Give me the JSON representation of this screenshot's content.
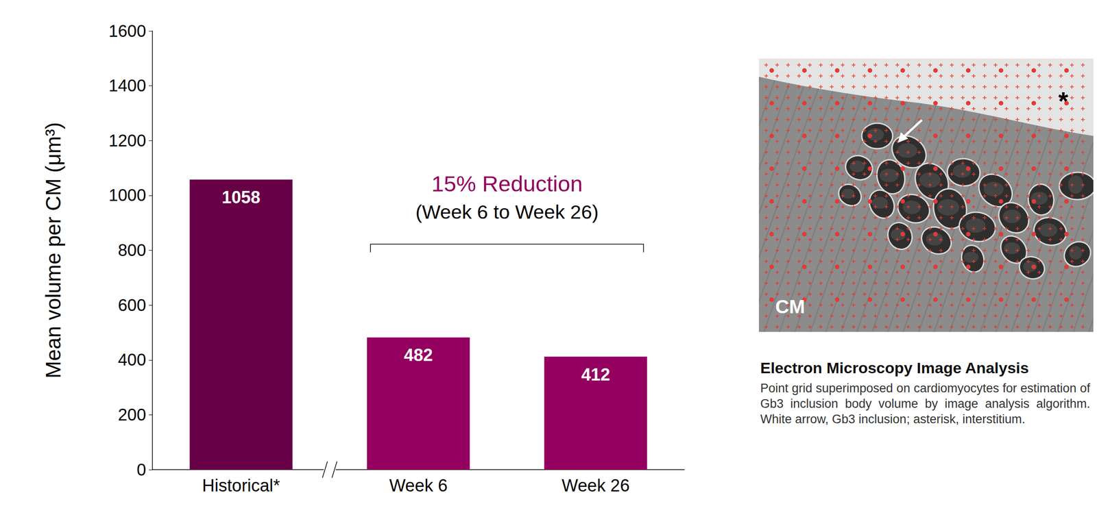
{
  "chart_data": {
    "type": "bar",
    "y_label": "Mean volume per CM (μm³)",
    "categories": [
      "Historical*",
      "Week 6",
      "Week 26"
    ],
    "values": [
      1058,
      482,
      412
    ],
    "colors": [
      "#680047",
      "#93005f",
      "#93005f"
    ],
    "ylim": [
      0,
      1600
    ],
    "yticks": [
      0,
      200,
      400,
      600,
      800,
      1000,
      1200,
      1400,
      1600
    ],
    "grid": false,
    "data_labels": true,
    "annotation": {
      "text": "15% Reduction",
      "subtext": "(Week 6 to Week 26)",
      "span": [
        "Week 6",
        "Week 26"
      ]
    }
  },
  "side_panel": {
    "image_labels": {
      "region": "CM",
      "marker": "*"
    },
    "caption_title": "Electron Microscopy Image Analysis",
    "caption": "Point grid superimposed on cardiomyocytes for estimation of Gb3 inclusion body volume by image analysis algorithm. White arrow, Gb3 inclusion; asterisk, interstitium."
  }
}
